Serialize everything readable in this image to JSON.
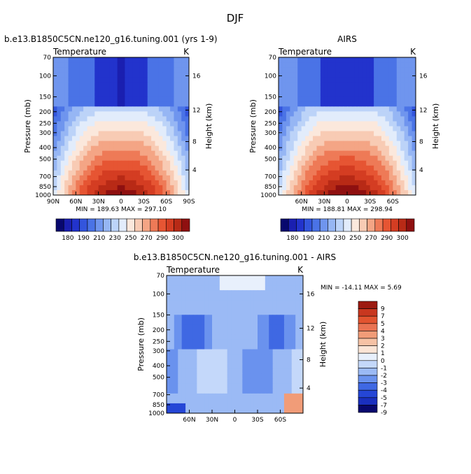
{
  "page_title": "DJF",
  "colors": {
    "warm_scale": [
      "#08086e",
      "#1a1fb0",
      "#2233cc",
      "#3355dd",
      "#4a73e6",
      "#6f95ee",
      "#96b6f4",
      "#bcd3f8",
      "#e2ecfb",
      "#fbe8dc",
      "#f8cbb4",
      "#f4a585",
      "#ee7a57",
      "#e65533",
      "#d43d22",
      "#b82a16",
      "#8f1010"
    ],
    "diff_scale": [
      "#08086e",
      "#1a2fbf",
      "#2546d6",
      "#3f68e3",
      "#6a92ee",
      "#9bbaf5",
      "#c4d8fa",
      "#e8f0fc",
      "#fbe5d6",
      "#f6c2a5",
      "#f19c78",
      "#ea7352",
      "#e2542f",
      "#c8371f",
      "#9c1a10"
    ]
  },
  "chart_data": [
    {
      "type": "heatmap",
      "title": "b.e13.B1850C5CN.ne120_g16.tuning.001 (yrs 1-9)",
      "subtitle_left": "Temperature",
      "subtitle_right": "K",
      "ylabel": "Pressure (mb)",
      "y2label": "Height (km)",
      "x_ticks": [
        "90N",
        "60N",
        "30N",
        "0",
        "30S",
        "60S",
        "90S"
      ],
      "y_ticks": [
        "70",
        "100",
        "150",
        "200",
        "250",
        "300",
        "400",
        "500",
        "700",
        "850",
        "1000"
      ],
      "y2_ticks": [
        "16",
        "12",
        "8",
        "4"
      ],
      "stats": "MIN = 189.63   MAX = 297.10",
      "colorbar_labels": [
        "180",
        "190",
        "210",
        "230",
        "250",
        "270",
        "290",
        "300"
      ]
    },
    {
      "type": "heatmap",
      "title": "AIRS",
      "subtitle_left": "Temperature",
      "subtitle_right": "K",
      "ylabel": "Pressure (mb)",
      "y2label": "Height (km)",
      "x_ticks": [
        "60N",
        "30N",
        "0",
        "30S",
        "60S"
      ],
      "y_ticks": [
        "70",
        "100",
        "150",
        "200",
        "250",
        "300",
        "400",
        "500",
        "700",
        "850",
        "1000"
      ],
      "y2_ticks": [
        "16",
        "12",
        "8",
        "4"
      ],
      "stats": "MIN = 188.81   MAX = 298.94",
      "colorbar_labels": [
        "180",
        "190",
        "210",
        "230",
        "250",
        "270",
        "290",
        "300"
      ]
    },
    {
      "type": "heatmap",
      "title": "b.e13.B1850C5CN.ne120_g16.tuning.001 - AIRS",
      "subtitle_left": "Temperature",
      "subtitle_right": "K",
      "ylabel": "Pressure (mb)",
      "y2label": "Height (km)",
      "x_ticks": [
        "60N",
        "30N",
        "0",
        "30S",
        "60S"
      ],
      "y_ticks": [
        "70",
        "100",
        "150",
        "200",
        "250",
        "300",
        "400",
        "500",
        "700",
        "850",
        "1000"
      ],
      "y2_ticks": [
        "16",
        "12",
        "8",
        "4"
      ],
      "stats": "MIN = -14.11   MAX =    5.69",
      "colorbar_labels": [
        "9",
        "7",
        "5",
        "4",
        "3",
        "2",
        "1",
        "0",
        "-1",
        "-2",
        "-3",
        "-4",
        "-5",
        "-7",
        "-9"
      ]
    }
  ]
}
